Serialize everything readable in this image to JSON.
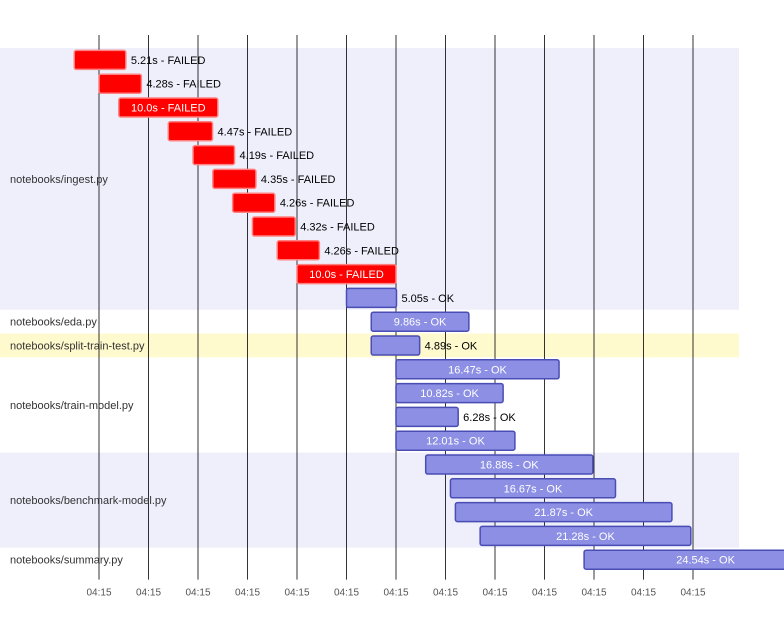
{
  "colors": {
    "failed_fill": "#ff0000",
    "failed_stroke": "#ff8080",
    "ok_fill": "#8c8fe3",
    "ok_stroke": "#4a4db3",
    "band_alt": "#efeffc",
    "band_highlight": "#fffacd",
    "band_plain": "#ffffff",
    "grid": "#000000",
    "label_outside": "#000000",
    "label_inside": "#ffffff"
  },
  "chart_data": {
    "type": "gantt",
    "x_unit": "seconds from first task start",
    "xlim": [
      -7.5,
      64
    ],
    "grid": true,
    "x_ticks": [
      {
        "value": 0,
        "label": "04:15"
      },
      {
        "value": 5,
        "label": "04:15"
      },
      {
        "value": 10,
        "label": "04:15"
      },
      {
        "value": 15,
        "label": "04:15"
      },
      {
        "value": 20,
        "label": "04:15"
      },
      {
        "value": 25,
        "label": "04:15"
      },
      {
        "value": 30,
        "label": "04:15"
      },
      {
        "value": 35,
        "label": "04:15"
      },
      {
        "value": 40,
        "label": "04:15"
      },
      {
        "value": 45,
        "label": "04:15"
      },
      {
        "value": 50,
        "label": "04:15"
      },
      {
        "value": 55,
        "label": "04:15"
      },
      {
        "value": 60,
        "label": "04:15"
      }
    ],
    "groups": [
      {
        "name": "notebooks/ingest.py",
        "highlight": false,
        "tasks": [
          {
            "start": -2.5,
            "duration": 5.21,
            "label": "5.21s - FAILED",
            "status": "FAILED"
          },
          {
            "start": 0.0,
            "duration": 4.28,
            "label": "4.28s - FAILED",
            "status": "FAILED"
          },
          {
            "start": 2.0,
            "duration": 10.0,
            "label": "10.0s - FAILED",
            "status": "FAILED"
          },
          {
            "start": 7.0,
            "duration": 4.47,
            "label": "4.47s - FAILED",
            "status": "FAILED"
          },
          {
            "start": 9.5,
            "duration": 4.19,
            "label": "4.19s - FAILED",
            "status": "FAILED"
          },
          {
            "start": 11.5,
            "duration": 4.35,
            "label": "4.35s - FAILED",
            "status": "FAILED"
          },
          {
            "start": 13.5,
            "duration": 4.26,
            "label": "4.26s - FAILED",
            "status": "FAILED"
          },
          {
            "start": 15.5,
            "duration": 4.32,
            "label": "4.32s - FAILED",
            "status": "FAILED"
          },
          {
            "start": 18.0,
            "duration": 4.26,
            "label": "4.26s - FAILED",
            "status": "FAILED"
          },
          {
            "start": 20.0,
            "duration": 10.0,
            "label": "10.0s - FAILED",
            "status": "FAILED"
          },
          {
            "start": 25.0,
            "duration": 5.05,
            "label": "5.05s - OK",
            "status": "OK"
          }
        ]
      },
      {
        "name": "notebooks/eda.py",
        "highlight": false,
        "tasks": [
          {
            "start": 27.5,
            "duration": 9.86,
            "label": "9.86s - OK",
            "status": "OK"
          }
        ]
      },
      {
        "name": "notebooks/split-train-test.py",
        "highlight": true,
        "tasks": [
          {
            "start": 27.5,
            "duration": 4.89,
            "label": "4.89s - OK",
            "status": "OK"
          }
        ]
      },
      {
        "name": "notebooks/train-model.py",
        "highlight": false,
        "tasks": [
          {
            "start": 30.0,
            "duration": 16.47,
            "label": "16.47s - OK",
            "status": "OK"
          },
          {
            "start": 30.0,
            "duration": 10.82,
            "label": "10.82s - OK",
            "status": "OK"
          },
          {
            "start": 30.0,
            "duration": 6.28,
            "label": "6.28s - OK",
            "status": "OK"
          },
          {
            "start": 30.0,
            "duration": 12.01,
            "label": "12.01s - OK",
            "status": "OK"
          }
        ]
      },
      {
        "name": "notebooks/benchmark-model.py",
        "highlight": false,
        "tasks": [
          {
            "start": 33.0,
            "duration": 16.88,
            "label": "16.88s - OK",
            "status": "OK"
          },
          {
            "start": 35.5,
            "duration": 16.67,
            "label": "16.67s - OK",
            "status": "OK"
          },
          {
            "start": 36.0,
            "duration": 21.87,
            "label": "21.87s - OK",
            "status": "OK"
          },
          {
            "start": 38.5,
            "duration": 21.28,
            "label": "21.28s - OK",
            "status": "OK"
          }
        ]
      },
      {
        "name": "notebooks/summary.py",
        "highlight": false,
        "tasks": [
          {
            "start": 49.0,
            "duration": 24.54,
            "label": "24.54s - OK",
            "status": "OK"
          }
        ]
      }
    ]
  }
}
